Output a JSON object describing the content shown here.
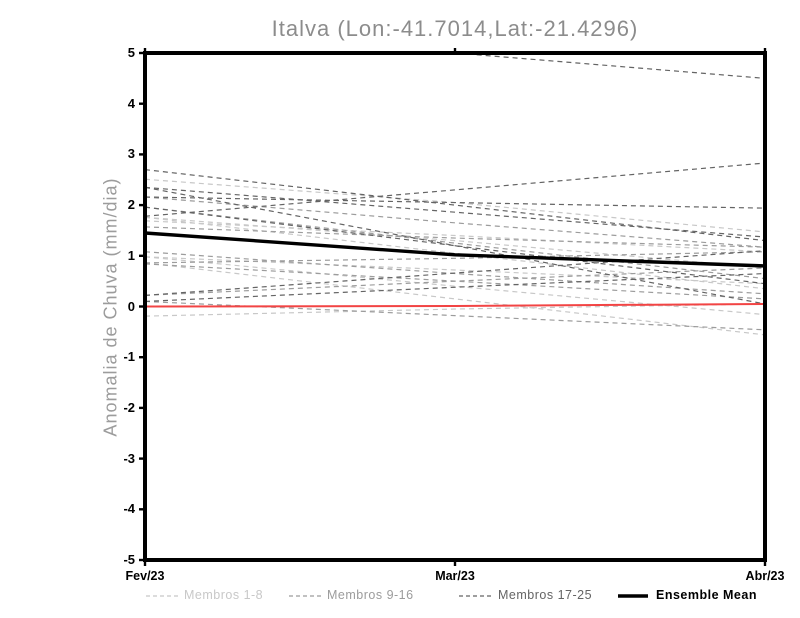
{
  "chart_data": {
    "type": "line",
    "title": "Italva (Lon:-41.7014,Lat:-21.4296)",
    "ylabel": "Anomalia de Chuva (mm/dia)",
    "xlabel": "",
    "x": [
      "Fev/23",
      "Mar/23",
      "Abr/23"
    ],
    "ylim": [
      -5,
      5
    ],
    "yticks": [
      5,
      4,
      3,
      2,
      1,
      0,
      -1,
      -2,
      -3,
      -4,
      -5
    ],
    "grid": false,
    "legend_position": "bottom",
    "member_groups": [
      {
        "label": "Membros 1-8",
        "color": "#c8c8c8"
      },
      {
        "label": "Membros 9-16",
        "color": "#9c9c9c"
      },
      {
        "label": "Membros 17-25",
        "color": "#646464"
      }
    ],
    "members": [
      {
        "group": 0,
        "values": [
          2.51,
          2.05,
          1.47
        ]
      },
      {
        "group": 0,
        "values": [
          1.76,
          1.05,
          0.35
        ]
      },
      {
        "group": 0,
        "values": [
          1.69,
          1.4,
          1.08
        ]
      },
      {
        "group": 0,
        "values": [
          0.98,
          0.4,
          -0.16
        ]
      },
      {
        "group": 0,
        "values": [
          -0.19,
          -0.05,
          0.05
        ]
      },
      {
        "group": 0,
        "values": [
          0.86,
          0.15,
          -0.56
        ]
      },
      {
        "group": 0,
        "values": [
          1.76,
          1.3,
          0.76
        ]
      },
      {
        "group": 0,
        "values": [
          0.98,
          0.72,
          0.45
        ]
      },
      {
        "group": 1,
        "values": [
          1.57,
          1.35,
          1.17
        ]
      },
      {
        "group": 1,
        "values": [
          1.08,
          0.65,
          0.25
        ]
      },
      {
        "group": 1,
        "values": [
          0.86,
          0.95,
          1.08
        ]
      },
      {
        "group": 1,
        "values": [
          0.84,
          0.5,
          0.15
        ]
      },
      {
        "group": 1,
        "values": [
          0.22,
          0.5,
          0.76
        ]
      },
      {
        "group": 1,
        "values": [
          0.1,
          -0.18,
          -0.46
        ]
      },
      {
        "group": 1,
        "values": [
          1.96,
          1.25,
          0.55
        ]
      },
      {
        "group": 1,
        "values": [
          2.16,
          1.65,
          1.17
        ]
      },
      {
        "group": 2,
        "values": [
          5.55,
          5.0,
          4.5
        ]
      },
      {
        "group": 2,
        "values": [
          1.78,
          2.3,
          2.83
        ]
      },
      {
        "group": 2,
        "values": [
          2.7,
          2.0,
          1.3
        ]
      },
      {
        "group": 2,
        "values": [
          2.16,
          2.05,
          1.94
        ]
      },
      {
        "group": 2,
        "values": [
          2.35,
          1.86,
          1.37
        ]
      },
      {
        "group": 2,
        "values": [
          1.96,
          1.2,
          0.45
        ]
      },
      {
        "group": 2,
        "values": [
          0.1,
          0.38,
          0.65
        ]
      },
      {
        "group": 2,
        "values": [
          0.22,
          0.66,
          1.1
        ]
      },
      {
        "group": 2,
        "values": [
          2.35,
          1.2,
          0.05
        ]
      }
    ],
    "ensemble_mean": {
      "label": "Ensemble Mean",
      "color": "#000000",
      "values": [
        1.45,
        1.02,
        0.8
      ]
    },
    "zero_line": {
      "color": "#f24444",
      "values": [
        0.0,
        0.01,
        0.05
      ]
    },
    "legend": [
      {
        "label": "Membros 1-8",
        "color": "#c8c8c8",
        "style": "dashed"
      },
      {
        "label": "Membros 9-16",
        "color": "#9c9c9c",
        "style": "dashed"
      },
      {
        "label": "Membros 17-25",
        "color": "#646464",
        "style": "dashed"
      },
      {
        "label": "Ensemble Mean",
        "color": "#000000",
        "style": "solid-bold"
      }
    ]
  },
  "colors": {
    "frame": "#000000",
    "title": "#8c8c8c",
    "y_axis_label": "#9c9c9c",
    "tick_labels": "#000000"
  }
}
